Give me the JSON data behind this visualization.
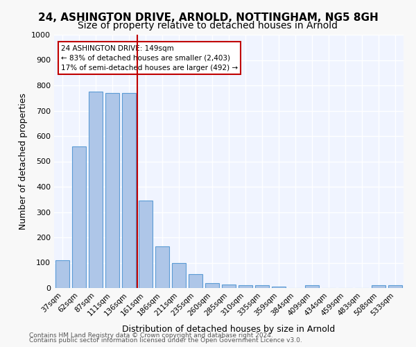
{
  "title1": "24, ASHINGTON DRIVE, ARNOLD, NOTTINGHAM, NG5 8GH",
  "title2": "Size of property relative to detached houses in Arnold",
  "xlabel": "Distribution of detached houses by size in Arnold",
  "ylabel": "Number of detached properties",
  "categories": [
    "37sqm",
    "62sqm",
    "87sqm",
    "111sqm",
    "136sqm",
    "161sqm",
    "186sqm",
    "211sqm",
    "235sqm",
    "260sqm",
    "285sqm",
    "310sqm",
    "335sqm",
    "359sqm",
    "384sqm",
    "409sqm",
    "434sqm",
    "459sqm",
    "483sqm",
    "508sqm",
    "533sqm"
  ],
  "values": [
    110,
    560,
    775,
    770,
    770,
    345,
    165,
    100,
    55,
    20,
    15,
    10,
    10,
    5,
    0,
    10,
    0,
    0,
    0,
    10,
    10
  ],
  "bar_color": "#aec6e8",
  "bar_edgecolor": "#5b9bd5",
  "vline_x": 4.6,
  "vline_color": "#c00000",
  "annotation_text": "24 ASHINGTON DRIVE: 149sqm\n← 83% of detached houses are smaller (2,403)\n17% of semi-detached houses are larger (492) →",
  "annotation_box_color": "#c00000",
  "ylim": [
    0,
    1000
  ],
  "yticks": [
    0,
    100,
    200,
    300,
    400,
    500,
    600,
    700,
    800,
    900,
    1000
  ],
  "background_color": "#f0f4ff",
  "grid_color": "#ffffff",
  "footer1": "Contains HM Land Registry data © Crown copyright and database right 2024.",
  "footer2": "Contains public sector information licensed under the Open Government Licence v3.0.",
  "title1_fontsize": 11,
  "title2_fontsize": 10,
  "xlabel_fontsize": 9,
  "ylabel_fontsize": 9
}
